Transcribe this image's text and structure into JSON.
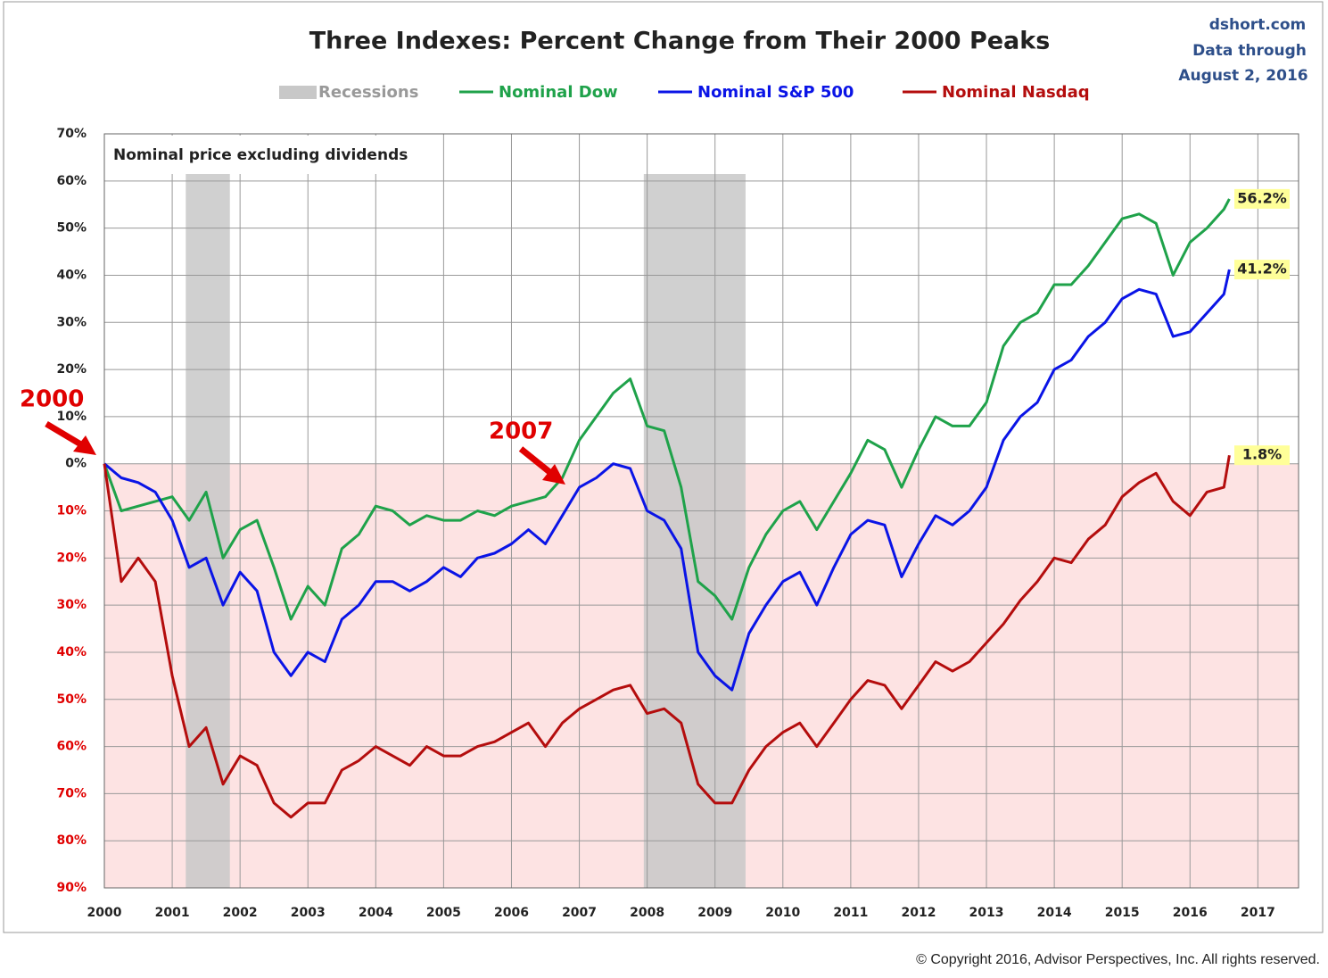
{
  "chart_data": {
    "type": "line",
    "title": "Three Indexes: Percent Change from Their 2000 Peaks",
    "source": [
      "dshort.com",
      "Data through",
      "August 2, 2016"
    ],
    "subtitle": "Nominal price excluding dividends",
    "annotations": [
      "2000",
      "2007"
    ],
    "copyright": "© Copyright 2016, Advisor Perspectives, Inc. All rights reserved.",
    "x": [
      2000,
      2000.25,
      2000.5,
      2000.75,
      2001,
      2001.25,
      2001.5,
      2001.75,
      2002,
      2002.25,
      2002.5,
      2002.75,
      2003,
      2003.25,
      2003.5,
      2003.75,
      2004,
      2004.25,
      2004.5,
      2004.75,
      2005,
      2005.25,
      2005.5,
      2005.75,
      2006,
      2006.25,
      2006.5,
      2006.75,
      2007,
      2007.25,
      2007.5,
      2007.75,
      2008,
      2008.25,
      2008.5,
      2008.75,
      2009,
      2009.25,
      2009.5,
      2009.75,
      2010,
      2010.25,
      2010.5,
      2010.75,
      2011,
      2011.25,
      2011.5,
      2011.75,
      2012,
      2012.25,
      2012.5,
      2012.75,
      2013,
      2013.25,
      2013.5,
      2013.75,
      2014,
      2014.25,
      2014.5,
      2014.75,
      2015,
      2015.25,
      2015.5,
      2015.75,
      2016,
      2016.25,
      2016.5,
      2016.58
    ],
    "recessions": {
      "name": "Recessions",
      "color": "#c8c8c8",
      "spans": [
        [
          2001.2,
          2001.85
        ],
        [
          2007.95,
          2009.45
        ]
      ]
    },
    "series": [
      {
        "name": "Nominal Dow",
        "color": "#1fa24a",
        "end_label": "56.2%",
        "values": [
          0,
          -10,
          -9,
          -8,
          -7,
          -12,
          -6,
          -20,
          -14,
          -12,
          -22,
          -33,
          -26,
          -30,
          -18,
          -15,
          -9,
          -10,
          -13,
          -11,
          -12,
          -12,
          -10,
          -11,
          -9,
          -8,
          -7,
          -3,
          5,
          10,
          15,
          18,
          8,
          7,
          -5,
          -25,
          -28,
          -33,
          -22,
          -15,
          -10,
          -8,
          -14,
          -8,
          -2,
          5,
          3,
          -5,
          3,
          10,
          8,
          8,
          13,
          25,
          30,
          32,
          38,
          38,
          42,
          47,
          52,
          53,
          51,
          40,
          47,
          50,
          54,
          56.2
        ]
      },
      {
        "name": "Nominal S&P 500",
        "color": "#0a14e6",
        "end_label": "41.2%",
        "values": [
          0,
          -3,
          -4,
          -6,
          -12,
          -22,
          -20,
          -30,
          -23,
          -27,
          -40,
          -45,
          -40,
          -42,
          -33,
          -30,
          -25,
          -25,
          -27,
          -25,
          -22,
          -24,
          -20,
          -19,
          -17,
          -14,
          -17,
          -11,
          -5,
          -3,
          0,
          -1,
          -10,
          -12,
          -18,
          -40,
          -45,
          -48,
          -36,
          -30,
          -25,
          -23,
          -30,
          -22,
          -15,
          -12,
          -13,
          -24,
          -17,
          -11,
          -13,
          -10,
          -5,
          5,
          10,
          13,
          20,
          22,
          27,
          30,
          35,
          37,
          36,
          27,
          28,
          32,
          36,
          41.2
        ]
      },
      {
        "name": "Nominal Nasdaq",
        "color": "#b40d0d",
        "end_label": "1.8%",
        "values": [
          0,
          -25,
          -20,
          -25,
          -45,
          -60,
          -56,
          -68,
          -62,
          -64,
          -72,
          -75,
          -72,
          -72,
          -65,
          -63,
          -60,
          -62,
          -64,
          -60,
          -62,
          -62,
          -60,
          -59,
          -57,
          -55,
          -60,
          -55,
          -52,
          -50,
          -48,
          -47,
          -53,
          -52,
          -55,
          -68,
          -72,
          -72,
          -65,
          -60,
          -57,
          -55,
          -60,
          -55,
          -50,
          -46,
          -47,
          -52,
          -47,
          -42,
          -44,
          -42,
          -38,
          -34,
          -29,
          -25,
          -20,
          -21,
          -16,
          -13,
          -7,
          -4,
          -2,
          -8,
          -11,
          -6,
          -5,
          1.8
        ]
      }
    ],
    "xlim": [
      2000,
      2017.6
    ],
    "xticks": [
      2000,
      2001,
      2002,
      2003,
      2004,
      2005,
      2006,
      2007,
      2008,
      2009,
      2010,
      2011,
      2012,
      2013,
      2014,
      2015,
      2016,
      2017
    ],
    "ylim": [
      -90,
      70
    ],
    "yticks": [
      {
        "value": -90,
        "label": "90%"
      },
      {
        "value": -80,
        "label": "80%"
      },
      {
        "value": -70,
        "label": "70%"
      },
      {
        "value": -60,
        "label": "60%"
      },
      {
        "value": -50,
        "label": "50%"
      },
      {
        "value": -40,
        "label": "40%"
      },
      {
        "value": -30,
        "label": "30%"
      },
      {
        "value": -20,
        "label": "20%"
      },
      {
        "value": -10,
        "label": "10%"
      },
      {
        "value": 0,
        "label": "0%"
      },
      {
        "value": 10,
        "label": "10%"
      },
      {
        "value": 20,
        "label": "20%"
      },
      {
        "value": 30,
        "label": "30%"
      },
      {
        "value": 40,
        "label": "40%"
      },
      {
        "value": 50,
        "label": "50%"
      },
      {
        "value": 60,
        "label": "60%"
      },
      {
        "value": 70,
        "label": "70%"
      }
    ],
    "grid": true,
    "negative_fill": "#fde3e3",
    "negative_label_color": "#e00000",
    "end_label_fill": "#ffff99"
  }
}
